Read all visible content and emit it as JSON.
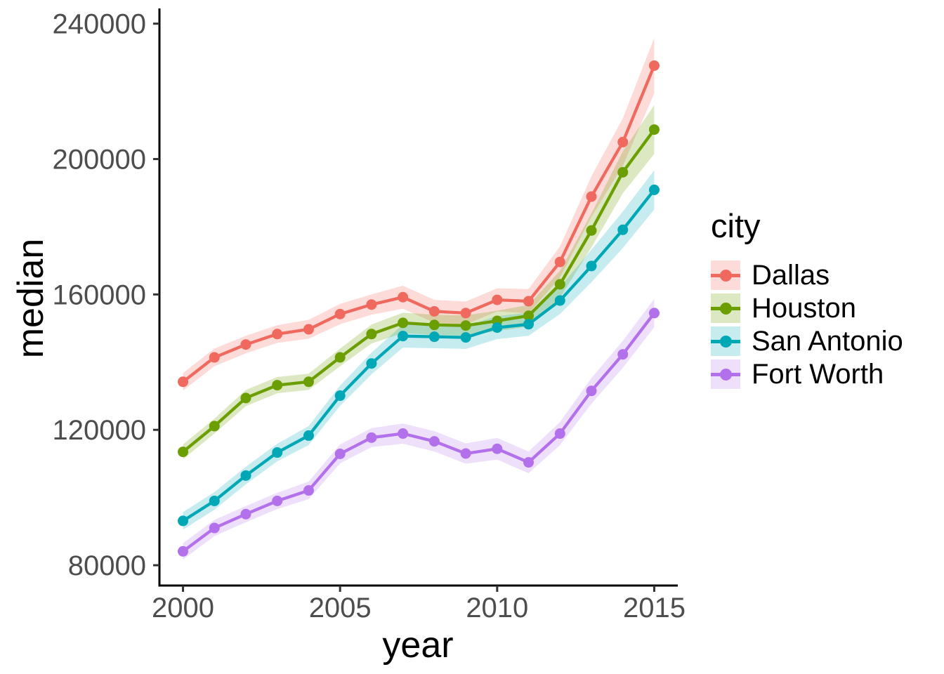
{
  "chart_data": {
    "type": "line",
    "title": "",
    "xlabel": "year",
    "ylabel": "median",
    "legend_title": "city",
    "legend_position": "right",
    "grid": false,
    "x": [
      2000,
      2001,
      2002,
      2003,
      2004,
      2005,
      2006,
      2007,
      2008,
      2009,
      2010,
      2011,
      2012,
      2013,
      2014,
      2015
    ],
    "x_ticks": [
      2000,
      2005,
      2010,
      2015
    ],
    "y_ticks": [
      80000,
      120000,
      160000,
      200000,
      240000
    ],
    "xlim": [
      1999.25,
      2015.75
    ],
    "ylim": [
      74000,
      244500
    ],
    "series": [
      {
        "name": "Dallas",
        "color": "#F0695E",
        "ribbon_color": "rgba(241,105,94,0.24)",
        "values": [
          134200,
          141400,
          145200,
          148300,
          149700,
          154200,
          157000,
          159200,
          155000,
          154500,
          158400,
          158000,
          169600,
          188900,
          205000,
          227600
        ],
        "ci": [
          2600,
          2600,
          2600,
          2600,
          2800,
          3000,
          3000,
          3400,
          3400,
          3400,
          3400,
          3600,
          4600,
          6000,
          7000,
          8200
        ]
      },
      {
        "name": "Houston",
        "color": "#6B9E00",
        "ribbon_color": "rgba(110,158,0,0.24)",
        "values": [
          113500,
          121100,
          129400,
          133200,
          134200,
          141400,
          148300,
          151600,
          151000,
          150800,
          152200,
          153700,
          163000,
          178900,
          196100,
          208700
        ],
        "ci": [
          2200,
          2200,
          2400,
          2400,
          2400,
          2600,
          2800,
          3000,
          3000,
          3000,
          3000,
          3200,
          4000,
          5000,
          6200,
          7200
        ]
      },
      {
        "name": "San Antonio",
        "color": "#00A7B5",
        "ribbon_color": "rgba(0,167,181,0.22)",
        "values": [
          93100,
          99000,
          106500,
          113300,
          118300,
          130100,
          139600,
          147700,
          147500,
          147300,
          150200,
          151200,
          158200,
          168400,
          179100,
          190900
        ],
        "ci": [
          2600,
          2600,
          2600,
          2600,
          2800,
          3000,
          3200,
          3400,
          3400,
          3400,
          3400,
          3400,
          4000,
          4800,
          5400,
          5800
        ]
      },
      {
        "name": "Fort Worth",
        "color": "#B370EB",
        "ribbon_color": "rgba(179,112,235,0.22)",
        "values": [
          84100,
          91000,
          95100,
          99000,
          102100,
          112900,
          117700,
          118900,
          116600,
          113000,
          114400,
          110400,
          118900,
          131500,
          142300,
          154500
        ],
        "ci": [
          2400,
          2400,
          2400,
          2400,
          2600,
          2800,
          2800,
          3000,
          3000,
          3000,
          3200,
          3200,
          3400,
          3800,
          4000,
          4200
        ]
      }
    ],
    "axis": {
      "tick_color": "#333333",
      "tick_label_color": "#4D4D4D",
      "line_color": "#000000"
    }
  }
}
